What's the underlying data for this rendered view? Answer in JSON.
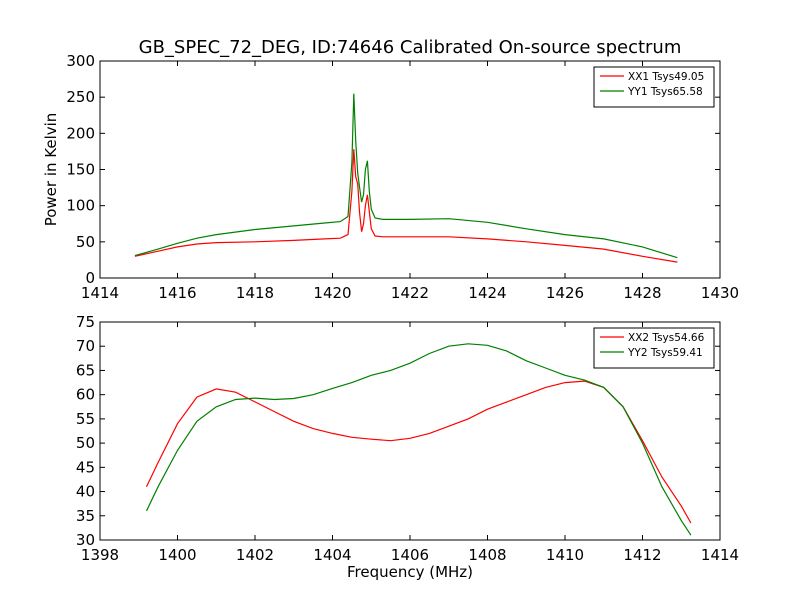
{
  "chart_data": [
    {
      "type": "line",
      "title": "GB_SPEC_72_DEG, ID:74646 Calibrated On-source spectrum",
      "xlabel": "",
      "ylabel": "Power in Kelvin",
      "xlim": [
        1414,
        1430
      ],
      "ylim": [
        0,
        300
      ],
      "xticks": [
        "1414",
        "1416",
        "1418",
        "1420",
        "1422",
        "1424",
        "1426",
        "1428",
        "1430"
      ],
      "yticks": [
        "0",
        "50",
        "100",
        "150",
        "200",
        "250",
        "300"
      ],
      "legend_position": "top-right",
      "grid": false,
      "series": [
        {
          "name": "XX1 Tsys49.05",
          "color": "#ff0000",
          "x": [
            1414.9,
            1415.5,
            1416.0,
            1416.5,
            1417.0,
            1418.0,
            1419.0,
            1419.8,
            1420.2,
            1420.4,
            1420.5,
            1420.55,
            1420.6,
            1420.65,
            1420.7,
            1420.75,
            1420.8,
            1420.85,
            1420.9,
            1420.95,
            1421.0,
            1421.1,
            1421.3,
            1422.0,
            1423.0,
            1424.0,
            1425.0,
            1426.0,
            1427.0,
            1428.0,
            1428.9
          ],
          "y": [
            30,
            37,
            43,
            47,
            49,
            50,
            52,
            54,
            55,
            60,
            120,
            178,
            140,
            130,
            90,
            64,
            75,
            100,
            115,
            92,
            68,
            58,
            57,
            57,
            57,
            54,
            50,
            45,
            40,
            30,
            22
          ]
        },
        {
          "name": "YY1 Tsys65.58",
          "color": "#008000",
          "x": [
            1414.9,
            1415.5,
            1416.0,
            1416.5,
            1417.0,
            1418.0,
            1419.0,
            1419.8,
            1420.2,
            1420.4,
            1420.5,
            1420.55,
            1420.6,
            1420.65,
            1420.7,
            1420.75,
            1420.8,
            1420.85,
            1420.9,
            1420.95,
            1421.0,
            1421.1,
            1421.3,
            1422.0,
            1423.0,
            1424.0,
            1425.0,
            1426.0,
            1427.0,
            1428.0,
            1428.9
          ],
          "y": [
            31,
            40,
            48,
            55,
            60,
            67,
            72,
            76,
            78,
            85,
            160,
            255,
            190,
            145,
            125,
            105,
            115,
            150,
            162,
            120,
            95,
            83,
            81,
            81,
            82,
            77,
            68,
            60,
            54,
            43,
            28
          ]
        }
      ]
    },
    {
      "type": "line",
      "title": "",
      "xlabel": "Frequency (MHz)",
      "ylabel": "",
      "xlim": [
        1398,
        1414
      ],
      "ylim": [
        30,
        75
      ],
      "xticks": [
        "1398",
        "1400",
        "1402",
        "1404",
        "1406",
        "1408",
        "1410",
        "1412",
        "1414"
      ],
      "yticks": [
        "30",
        "35",
        "40",
        "45",
        "50",
        "55",
        "60",
        "65",
        "70",
        "75"
      ],
      "legend_position": "top-right",
      "grid": false,
      "series": [
        {
          "name": "XX2 Tsys54.66",
          "color": "#ff0000",
          "x": [
            1399.2,
            1399.5,
            1400.0,
            1400.5,
            1401.0,
            1401.5,
            1402.0,
            1402.5,
            1403.0,
            1403.5,
            1404.0,
            1404.5,
            1405.0,
            1405.5,
            1406.0,
            1406.5,
            1407.0,
            1407.5,
            1408.0,
            1408.5,
            1409.0,
            1409.5,
            1410.0,
            1410.5,
            1411.0,
            1411.5,
            1412.0,
            1412.5,
            1413.0,
            1413.25
          ],
          "y": [
            41,
            46,
            54,
            59.5,
            61.2,
            60.5,
            58.5,
            56.5,
            54.5,
            53,
            52,
            51.2,
            50.8,
            50.5,
            51,
            52,
            53.5,
            55,
            57,
            58.5,
            60,
            61.5,
            62.5,
            62.8,
            61.5,
            57.5,
            50.5,
            43,
            37,
            33.5
          ]
        },
        {
          "name": "YY2 Tsys59.41",
          "color": "#008000",
          "x": [
            1399.2,
            1399.5,
            1400.0,
            1400.5,
            1401.0,
            1401.5,
            1402.0,
            1402.5,
            1403.0,
            1403.5,
            1404.0,
            1404.5,
            1405.0,
            1405.5,
            1406.0,
            1406.5,
            1407.0,
            1407.5,
            1408.0,
            1408.5,
            1409.0,
            1409.5,
            1410.0,
            1410.5,
            1411.0,
            1411.5,
            1412.0,
            1412.5,
            1413.0,
            1413.25
          ],
          "y": [
            36,
            41,
            48.5,
            54.5,
            57.5,
            59,
            59.3,
            59,
            59.2,
            60,
            61.3,
            62.5,
            64,
            65,
            66.5,
            68.5,
            70,
            70.5,
            70.2,
            69,
            67,
            65.5,
            64,
            63,
            61.5,
            57.5,
            50,
            41,
            34,
            31
          ]
        }
      ]
    }
  ]
}
